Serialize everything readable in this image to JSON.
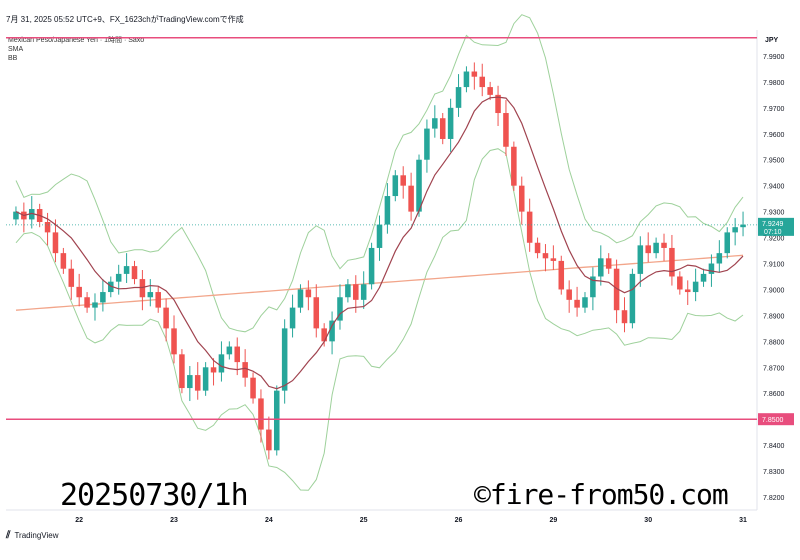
{
  "header": {
    "title": "7月 31, 2025 05:52 UTC+9、FX_1623chがTradingView.comで作成"
  },
  "legend": {
    "symbol": "Mexican Peso/Japanese Yen · 1時間 · Saxo",
    "sma": "SMA",
    "bb": "BB"
  },
  "footer": {
    "brand": "TradingView"
  },
  "stamps": {
    "left": "20250730/1h",
    "right": "©fire-from50.com"
  },
  "colors": {
    "up": "#26a69a",
    "down": "#ef5350",
    "bb": "#9ed19b",
    "sma": "#a0434f",
    "long_ma": "#f2a58a",
    "hline": "#e84d7d",
    "price_tag": "#26a69a"
  },
  "chart_data": {
    "type": "candlestick",
    "currency": "JPY",
    "ylim": [
      7.815,
      8.0
    ],
    "y_ticks": [
      "7.9900",
      "7.9800",
      "7.9700",
      "7.9600",
      "7.9500",
      "7.9400",
      "7.9300",
      "7.9200",
      "7.9100",
      "7.9000",
      "7.8900",
      "7.8800",
      "7.8700",
      "7.8600",
      "7.8500",
      "7.8400",
      "7.8300",
      "7.8200"
    ],
    "x_ticks": [
      "22",
      "23",
      "24",
      "25",
      "26",
      "29",
      "30",
      "31"
    ],
    "x_tick_index": [
      8,
      20,
      32,
      44,
      56,
      68,
      80,
      92
    ],
    "horizontal_lines": [
      {
        "value": 7.997,
        "label": ""
      },
      {
        "value": 7.85,
        "label": "7.8500"
      }
    ],
    "current_price": {
      "value": 7.9249,
      "label": "7.9249",
      "countdown": "07:10"
    },
    "candles_close": [
      7.93,
      7.927,
      7.931,
      7.926,
      7.922,
      7.914,
      7.908,
      7.901,
      7.897,
      7.893,
      7.895,
      7.899,
      7.903,
      7.906,
      7.909,
      7.904,
      7.897,
      7.899,
      7.893,
      7.885,
      7.875,
      7.862,
      7.867,
      7.861,
      7.87,
      7.868,
      7.875,
      7.878,
      7.872,
      7.866,
      7.858,
      7.846,
      7.838,
      7.861,
      7.885,
      7.893,
      7.9,
      7.897,
      7.885,
      7.88,
      7.888,
      7.897,
      7.902,
      7.896,
      7.902,
      7.916,
      7.925,
      7.936,
      7.944,
      7.94,
      7.93,
      7.95,
      7.962,
      7.966,
      7.958,
      7.97,
      7.978,
      7.984,
      7.982,
      7.978,
      7.975,
      7.968,
      7.955,
      7.94,
      7.93,
      7.918,
      7.914,
      7.912,
      7.911,
      7.9,
      7.896,
      7.893,
      7.897,
      7.905,
      7.912,
      7.908,
      7.892,
      7.887,
      7.906,
      7.917,
      7.914,
      7.918,
      7.916,
      7.905,
      7.9,
      7.899,
      7.903,
      7.906,
      7.91,
      7.914,
      7.922,
      7.924,
      7.925
    ]
  }
}
